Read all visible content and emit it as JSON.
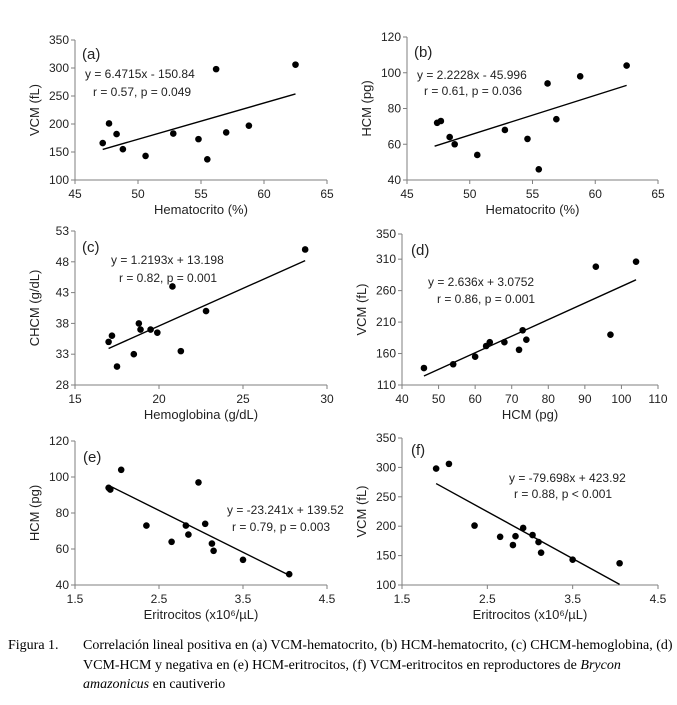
{
  "chart_data": [
    {
      "type": "scatter",
      "panel_label": "(a)",
      "xlabel": "Hematocrito (%)",
      "ylabel": "VCM (fL)",
      "xlim": [
        45,
        65
      ],
      "ylim": [
        100,
        350
      ],
      "xticks": [
        45,
        50,
        55,
        60,
        65
      ],
      "yticks": [
        100,
        150,
        200,
        250,
        300,
        350
      ],
      "equation": "y = 6.4715x - 150.84",
      "stats": "r = 0.57, p = 0.049",
      "trendline": {
        "slope": 6.4715,
        "intercept": -150.84,
        "x": [
          47.2,
          62.5
        ]
      },
      "points": [
        [
          47.2,
          166
        ],
        [
          47.7,
          201
        ],
        [
          48.3,
          182
        ],
        [
          48.8,
          155
        ],
        [
          50.6,
          143
        ],
        [
          52.8,
          183
        ],
        [
          54.8,
          173
        ],
        [
          55.5,
          137
        ],
        [
          56.2,
          298
        ],
        [
          57.0,
          185
        ],
        [
          58.8,
          197
        ],
        [
          62.5,
          306
        ]
      ]
    },
    {
      "type": "scatter",
      "panel_label": "(b)",
      "xlabel": "Hematocrito (%)",
      "ylabel": "HCM (pg)",
      "xlim": [
        45,
        65
      ],
      "ylim": [
        40,
        120
      ],
      "xticks": [
        45,
        50,
        55,
        60,
        65
      ],
      "yticks": [
        40,
        60,
        80,
        100,
        120
      ],
      "equation": "y = 2.2228x - 45.996",
      "stats": "r = 0.61, p = 0.036",
      "trendline": {
        "slope": 2.2228,
        "intercept": -45.996,
        "x": [
          47.2,
          62.5
        ]
      },
      "points": [
        [
          47.4,
          72
        ],
        [
          47.7,
          73
        ],
        [
          48.4,
          64
        ],
        [
          48.8,
          60
        ],
        [
          50.6,
          54
        ],
        [
          52.8,
          68
        ],
        [
          54.6,
          63
        ],
        [
          55.5,
          46
        ],
        [
          56.2,
          94
        ],
        [
          56.9,
          74
        ],
        [
          58.8,
          98
        ],
        [
          62.5,
          104
        ]
      ]
    },
    {
      "type": "scatter",
      "panel_label": "(c)",
      "xlabel": "Hemoglobina (g/dL)",
      "ylabel": "CHCM (g/dL)",
      "xlim": [
        15,
        30
      ],
      "ylim": [
        28,
        53
      ],
      "xticks": [
        15,
        20,
        25,
        30
      ],
      "yticks": [
        28,
        33,
        38,
        43,
        48,
        53
      ],
      "equation": "y = 1.2193x + 13.198",
      "stats": "r = 0.82, p = 0.001",
      "trendline": {
        "slope": 1.2193,
        "intercept": 13.198,
        "x": [
          17.0,
          28.7
        ]
      },
      "points": [
        [
          17.0,
          35
        ],
        [
          17.2,
          36
        ],
        [
          17.5,
          31
        ],
        [
          18.5,
          33
        ],
        [
          18.8,
          38
        ],
        [
          18.9,
          37
        ],
        [
          19.5,
          37
        ],
        [
          19.9,
          36.5
        ],
        [
          20.8,
          44
        ],
        [
          21.3,
          33.5
        ],
        [
          22.8,
          40
        ],
        [
          28.7,
          50
        ]
      ]
    },
    {
      "type": "scatter",
      "panel_label": "(d)",
      "xlabel": "HCM (pg)",
      "ylabel": "VCM (fL)",
      "xlim": [
        40,
        110
      ],
      "ylim": [
        110,
        350
      ],
      "xticks": [
        40,
        50,
        60,
        70,
        80,
        90,
        100,
        110
      ],
      "yticks": [
        110,
        160,
        210,
        260,
        310,
        350
      ],
      "equation": "y = 2.636x + 3.0752",
      "stats": "r = 0.86, p = 0.001",
      "trendline": {
        "slope": 2.636,
        "intercept": 3.0752,
        "x": [
          46,
          104
        ]
      },
      "points": [
        [
          46,
          137
        ],
        [
          54,
          143
        ],
        [
          60,
          155
        ],
        [
          63,
          172
        ],
        [
          64,
          178
        ],
        [
          68,
          178
        ],
        [
          72,
          166
        ],
        [
          73,
          197
        ],
        [
          74,
          182
        ],
        [
          93,
          298
        ],
        [
          97,
          190
        ],
        [
          104,
          306
        ]
      ]
    },
    {
      "type": "scatter",
      "panel_label": "(e)",
      "xlabel": "Eritrocitos (x10⁶/µL)",
      "ylabel": "HCM (pg)",
      "xlim": [
        1.5,
        4.5
      ],
      "ylim": [
        40,
        120
      ],
      "xticks": [
        1.5,
        2.5,
        3.5,
        4.5
      ],
      "yticks": [
        40,
        60,
        80,
        100,
        120
      ],
      "equation": "y = -23.241x + 139.52",
      "stats": "r = 0.79, p = 0.003",
      "trendline": {
        "slope": -23.241,
        "intercept": 139.52,
        "x": [
          1.9,
          4.05
        ]
      },
      "points": [
        [
          1.9,
          94
        ],
        [
          1.92,
          93
        ],
        [
          2.05,
          104
        ],
        [
          2.35,
          73
        ],
        [
          2.65,
          64
        ],
        [
          2.82,
          73
        ],
        [
          2.85,
          68
        ],
        [
          2.97,
          97
        ],
        [
          3.05,
          74
        ],
        [
          3.13,
          63
        ],
        [
          3.15,
          59
        ],
        [
          3.5,
          54
        ],
        [
          4.05,
          46
        ]
      ]
    },
    {
      "type": "scatter",
      "panel_label": "(f)",
      "xlabel": "Eritrocitos (x10⁶/µL)",
      "ylabel": "VCM (fL)",
      "xlim": [
        1.5,
        4.5
      ],
      "ylim": [
        100,
        350
      ],
      "xticks": [
        1.5,
        2.5,
        3.5,
        4.5
      ],
      "yticks": [
        100,
        150,
        200,
        250,
        300,
        350
      ],
      "equation": "y = -79.698x + 423.92",
      "stats": "r = 0.88, p < 0.001",
      "trendline": {
        "slope": -79.698,
        "intercept": 423.92,
        "x": [
          1.9,
          4.05
        ]
      },
      "points": [
        [
          1.9,
          298
        ],
        [
          2.05,
          306
        ],
        [
          2.35,
          201
        ],
        [
          2.65,
          182
        ],
        [
          2.8,
          168
        ],
        [
          2.83,
          183
        ],
        [
          2.92,
          197
        ],
        [
          3.03,
          185
        ],
        [
          3.1,
          173
        ],
        [
          3.13,
          155
        ],
        [
          3.5,
          143
        ],
        [
          4.05,
          137
        ]
      ]
    }
  ],
  "caption": {
    "label": "Figura 1.",
    "text_before": "Correlación lineal positiva en (a) VCM-hematocrito, (b) HCM-hematocrito, (c) CHCM-hemoglobina, (d) VCM-HCM y negativa en (e) HCM-eritrocitos, (f) VCM-eritrocitos en reproductores de ",
    "species": "Brycon amazonicus",
    "text_after": " en cautiverio"
  }
}
